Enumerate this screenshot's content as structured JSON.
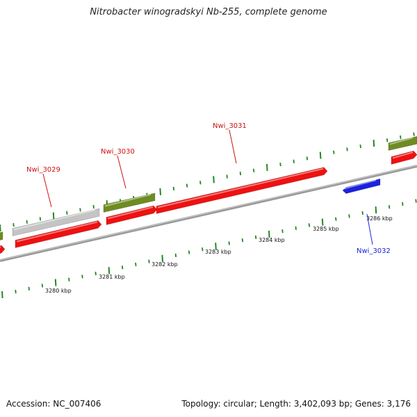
{
  "title": "Nitrobacter winogradskyi Nb-255, complete genome",
  "footer": {
    "accession": "Accession: NC_007406",
    "summary": "Topology: circular; Length: 3,402,093 bp; Genes: 3,176"
  },
  "colors": {
    "forward_gene": "#ee1111",
    "reverse_gene": "#1b22dd",
    "rna_olive": "#6e8c22",
    "other_gray": "#c4c4c4",
    "backbone": "#888888",
    "ticks": "#228822",
    "label_red": "#cc1111",
    "label_blue": "#1b22dd"
  },
  "scale": {
    "labels": [
      "3280 kbp",
      "3281 kbp",
      "3282 kbp",
      "3283 kbp",
      "3284 kbp",
      "3285 kbp",
      "3286 kbp"
    ]
  },
  "gene_labels": [
    {
      "id": "Nwi_3029",
      "strand": "forward"
    },
    {
      "id": "Nwi_3030",
      "strand": "forward"
    },
    {
      "id": "Nwi_3031",
      "strand": "forward"
    },
    {
      "id": "Nwi_3032",
      "strand": "reverse"
    }
  ]
}
